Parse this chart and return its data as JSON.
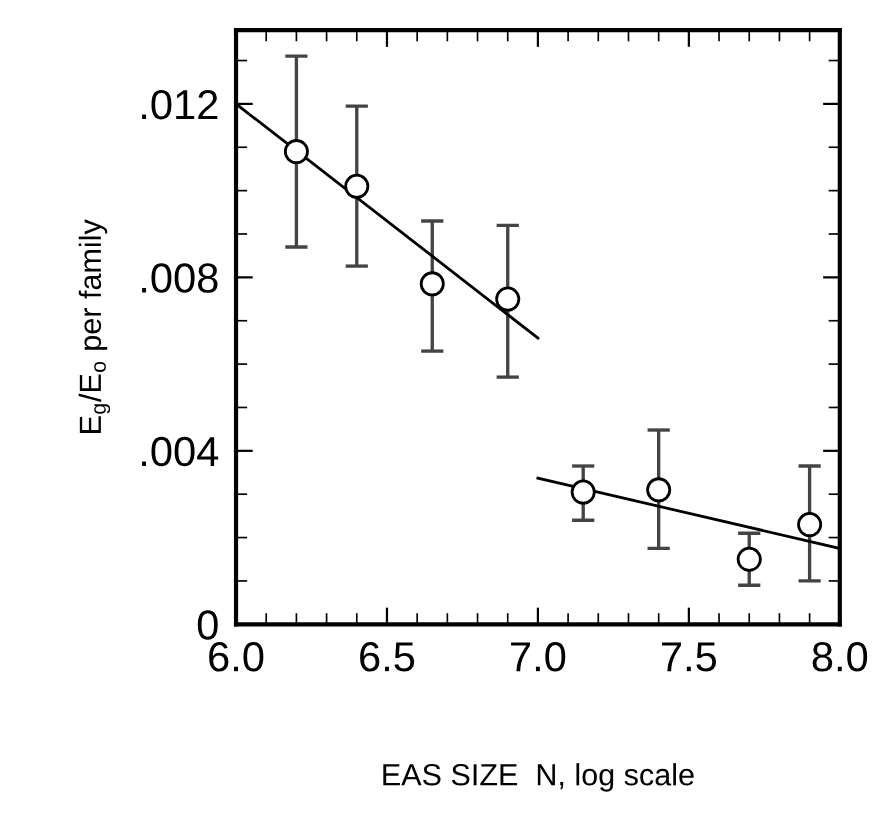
{
  "chart_data": {
    "type": "scatter",
    "xlabel": "EAS SIZE  N, log scale",
    "ylabel": "E$_{g}$/E$_{o}$ per family",
    "xlim": [
      6.0,
      8.0
    ],
    "xticks": [
      {
        "value": 6.0,
        "label": "6.0"
      },
      {
        "value": 6.5,
        "label": "6.5"
      },
      {
        "value": 7.0,
        "label": "7.0"
      },
      {
        "value": 7.5,
        "label": "7.5"
      },
      {
        "value": 8.0,
        "label": "8.0"
      }
    ],
    "ylim": [
      0,
      0.0137
    ],
    "yticks": [
      0,
      {
        "value": 0.004,
        "label": ".004"
      },
      {
        "value": 0.008,
        "label": ".008"
      },
      {
        "value": 0.012,
        "label": ".012"
      }
    ],
    "grid": false,
    "series": [
      {
        "marker": "circle",
        "color": "#000000",
        "x": [
          6.2,
          6.4,
          6.65,
          6.9,
          7.15,
          7.4,
          7.7,
          7.9
        ],
        "values": [
          0.0109,
          0.0101,
          0.00785,
          0.0075,
          0.00305,
          0.0031,
          0.0015,
          0.0023
        ],
        "errors": [
          [
            0.0087,
            0.0131
          ],
          [
            0.00826,
            0.01195
          ],
          [
            0.0063,
            0.0093
          ],
          [
            0.0057,
            0.0092
          ],
          [
            0.0024,
            0.00365
          ],
          [
            0.00175,
            0.00448
          ],
          [
            0.0009,
            0.0021
          ],
          [
            0.001,
            0.00365
          ]
        ]
      },
      {
        "type": "line",
        "marker": "none",
        "color": "#000000",
        "x": [
          6.0,
          7.0
        ],
        "values": [
          0.012,
          0.0066
        ]
      },
      {
        "type": "line",
        "marker": "none",
        "color": "#000000",
        "x": [
          7.0,
          8.0
        ],
        "values": [
          0.00337,
          0.00175
        ]
      }
    ]
  }
}
